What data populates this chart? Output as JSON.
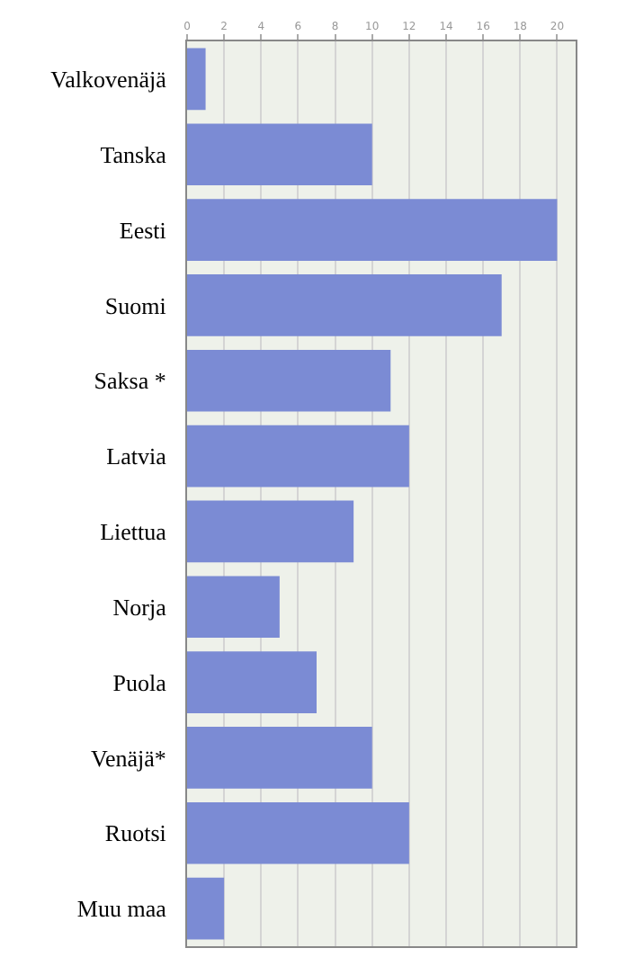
{
  "chart_data": {
    "type": "bar",
    "orientation": "horizontal",
    "categories": [
      "Valkovenäjä",
      "Tanska",
      "Eesti",
      "Suomi",
      "Saksa *",
      "Latvia",
      "Liettua",
      "Norja",
      "Puola",
      "Venäjä*",
      "Ruotsi",
      "Muu maa"
    ],
    "values": [
      1,
      10,
      20,
      17,
      11,
      12,
      9,
      5,
      7,
      10,
      12,
      2
    ],
    "color": "#7b8bd4",
    "xlim": [
      0,
      21
    ],
    "xticks": [
      0,
      2,
      4,
      6,
      8,
      10,
      12,
      14,
      16,
      18,
      20
    ],
    "grid": "x"
  }
}
